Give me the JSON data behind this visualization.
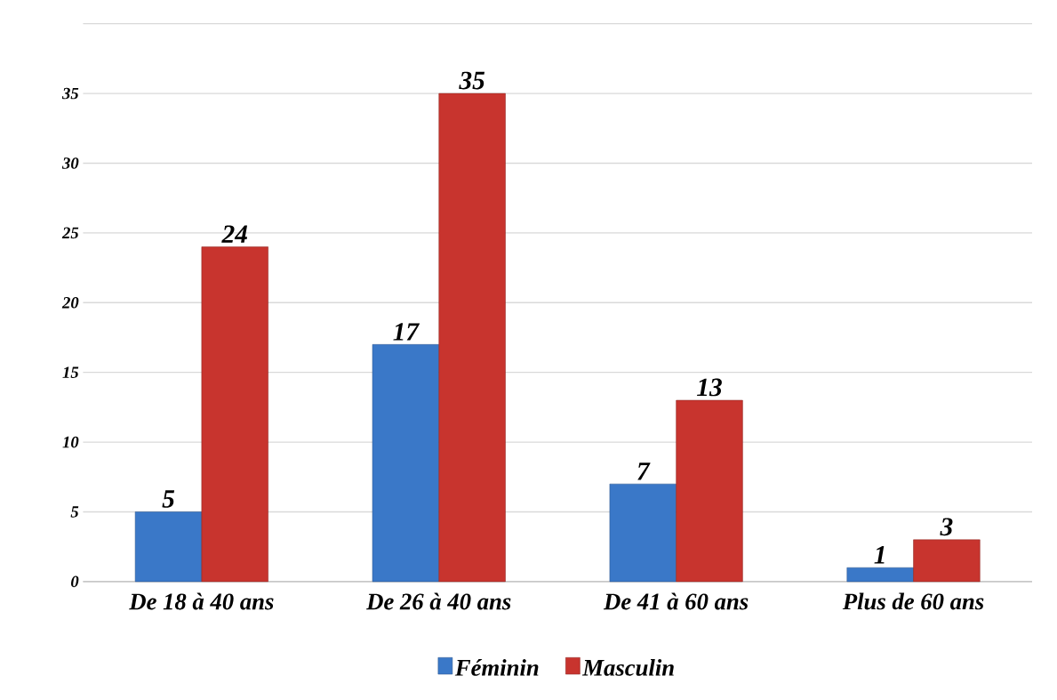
{
  "chart_data": {
    "type": "bar",
    "categories": [
      "De 18 à 40 ans",
      "De 26 à 40 ans",
      "De 41 à 60 ans",
      "Plus de 60 ans"
    ],
    "series": [
      {
        "name": "Féminin",
        "color": "#3a78c8",
        "values": [
          5,
          17,
          7,
          1
        ]
      },
      {
        "name": "Masculin",
        "color": "#c8342e",
        "values": [
          24,
          35,
          13,
          3
        ]
      }
    ],
    "ylim": [
      0,
      40
    ],
    "yticks": [
      0,
      5,
      10,
      15,
      20,
      25,
      30,
      35,
      {
        "value": 40,
        "label": null
      }
    ],
    "grid": "y",
    "legend": "bottom",
    "data_labels": true
  }
}
